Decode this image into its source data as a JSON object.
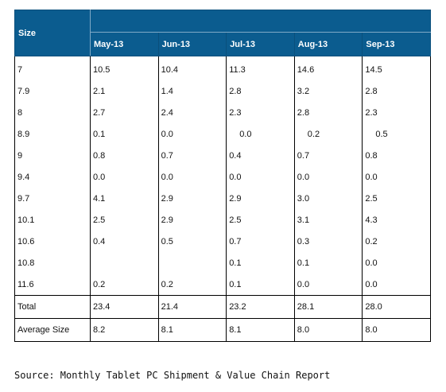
{
  "table": {
    "size_header": "Size",
    "months": [
      "May-13",
      "Jun-13",
      "Jul-13",
      "Aug-13",
      "Sep-13"
    ],
    "rows": [
      {
        "size": "7",
        "values": [
          "10.5",
          "10.4",
          "11.3",
          "14.6",
          "14.5"
        ]
      },
      {
        "size": "7.9",
        "values": [
          "2.1",
          "1.4",
          "2.8",
          "3.2",
          "2.8"
        ]
      },
      {
        "size": "8",
        "values": [
          "2.7",
          "2.4",
          "2.3",
          "2.8",
          "2.3"
        ]
      },
      {
        "size": "8.9",
        "values": [
          "0.1",
          "0.0",
          "0.0",
          "0.2",
          "0.5"
        ]
      },
      {
        "size": "9",
        "values": [
          "0.8",
          "0.7",
          "0.4",
          "0.7",
          "0.8"
        ]
      },
      {
        "size": "9.4",
        "values": [
          "0.0",
          "0.0",
          "0.0",
          "0.0",
          "0.0"
        ]
      },
      {
        "size": "9.7",
        "values": [
          "4.1",
          "2.9",
          "2.9",
          "3.0",
          "2.5"
        ]
      },
      {
        "size": "10.1",
        "values": [
          "2.5",
          "2.9",
          "2.5",
          "3.1",
          "4.3"
        ]
      },
      {
        "size": "10.6",
        "values": [
          "0.4",
          "0.5",
          "0.7",
          "0.3",
          "0.2"
        ]
      },
      {
        "size": "10.8",
        "values": [
          "",
          "",
          "0.1",
          "0.1",
          "0.0"
        ]
      },
      {
        "size": "11.6",
        "values": [
          "0.2",
          "0.2",
          "0.1",
          "0.0",
          "0.0"
        ]
      }
    ],
    "total": {
      "label": "Total",
      "values": [
        "23.4",
        "21.4",
        "23.2",
        "28.1",
        "28.0"
      ]
    },
    "average": {
      "label": "Average Size",
      "values": [
        "8.2",
        "8.1",
        "8.1",
        "8.0",
        "8.0"
      ]
    }
  },
  "source": "Source: Monthly Tablet PC Shipment & Value Chain Report",
  "colors": {
    "header_bg": "#0b5c8f",
    "header_text": "#ffffff"
  }
}
